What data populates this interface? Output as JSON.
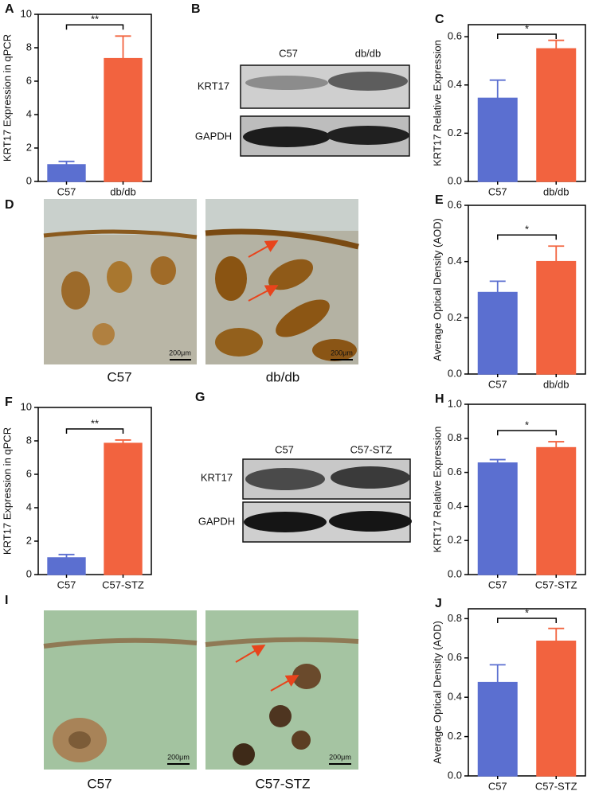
{
  "chart_data": [
    {
      "type": "bar",
      "panel": "A",
      "ylabel": "KRT17 Expression in qPCR",
      "categories": [
        "C57",
        "db/db"
      ],
      "values": [
        1.0,
        7.35
      ],
      "errors": [
        0.2,
        1.35
      ],
      "colors": [
        "#5b6fd0",
        "#f2633f"
      ],
      "ylim": [
        0,
        10
      ],
      "yticks": [
        0,
        2,
        4,
        6,
        8,
        10
      ],
      "annotation": "**"
    },
    {
      "type": "bar",
      "panel": "C",
      "ylabel": "KRT17 Relative Expression",
      "categories": [
        "C57",
        "db/db"
      ],
      "values": [
        0.345,
        0.55
      ],
      "errors": [
        0.075,
        0.035
      ],
      "colors": [
        "#5b6fd0",
        "#f2633f"
      ],
      "ylim": [
        0,
        0.65
      ],
      "yticks": [
        {
          "value": 0,
          "label": "0.0"
        },
        0.2,
        0.4,
        0.6
      ],
      "annotation": "*"
    },
    {
      "type": "bar",
      "panel": "E",
      "ylabel": "Average Optical Density (AOD)",
      "categories": [
        "C57",
        "db/db"
      ],
      "values": [
        0.29,
        0.4
      ],
      "errors": [
        0.04,
        0.055
      ],
      "colors": [
        "#5b6fd0",
        "#f2633f"
      ],
      "ylim": [
        0,
        0.6
      ],
      "yticks": [
        {
          "value": 0,
          "label": "0.0"
        },
        0.2,
        0.4,
        0.6
      ],
      "annotation": "*"
    },
    {
      "type": "bar",
      "panel": "F",
      "ylabel": "KRT17 Expression in qPCR",
      "categories": [
        "C57",
        "C57-STZ"
      ],
      "values": [
        1.0,
        7.85
      ],
      "errors": [
        0.2,
        0.2
      ],
      "colors": [
        "#5b6fd0",
        "#f2633f"
      ],
      "ylim": [
        0,
        10
      ],
      "yticks": [
        0,
        2,
        4,
        6,
        8,
        10
      ],
      "annotation": "**"
    },
    {
      "type": "bar",
      "panel": "H",
      "ylabel": "KRT17 Relative Expression",
      "categories": [
        "C57",
        "C57-STZ"
      ],
      "values": [
        0.655,
        0.745
      ],
      "errors": [
        0.02,
        0.035
      ],
      "colors": [
        "#5b6fd0",
        "#f2633f"
      ],
      "ylim": [
        0,
        1
      ],
      "yticks": [
        {
          "value": 0,
          "label": "0.0"
        },
        0.2,
        0.4,
        0.6,
        0.8,
        {
          "value": 1,
          "label": "1.0"
        }
      ],
      "annotation": "*"
    },
    {
      "type": "bar",
      "panel": "J",
      "ylabel": "Average Optical Density (AOD)",
      "categories": [
        "C57",
        "C57-STZ"
      ],
      "values": [
        0.475,
        0.685
      ],
      "errors": [
        0.09,
        0.065
      ],
      "colors": [
        "#5b6fd0",
        "#f2633f"
      ],
      "ylim": [
        0,
        0.85
      ],
      "yticks": [
        {
          "value": 0,
          "label": "0.0"
        },
        0.2,
        0.4,
        0.6,
        0.8
      ],
      "annotation": "*"
    }
  ],
  "blots": [
    {
      "panel": "B",
      "lanes": [
        "C57",
        "db/db"
      ],
      "rows": [
        "KRT17",
        "GAPDH"
      ]
    },
    {
      "panel": "G",
      "lanes": [
        "C57",
        "C57-STZ"
      ],
      "rows": [
        "KRT17",
        "GAPDH"
      ]
    }
  ],
  "micrographs": [
    {
      "panel": "D",
      "captions": [
        "C57",
        "db/db"
      ],
      "scale_bar": "200μm"
    },
    {
      "panel": "I",
      "captions": [
        "C57",
        "C57-STZ"
      ],
      "scale_bar": "200μm"
    }
  ]
}
